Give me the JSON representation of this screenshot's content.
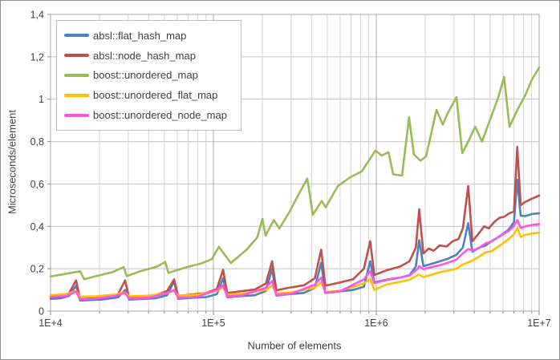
{
  "chart_data": {
    "type": "line",
    "title": "",
    "xlabel": "Number of elements",
    "ylabel": "Microseconds/element",
    "x_scale": "log",
    "x_range": [
      10000,
      10000000
    ],
    "y_range": [
      0,
      1.4
    ],
    "grid": true,
    "legend_position": "top-left",
    "x_axis_ticks": [
      {
        "v": 10000,
        "label": "1E+4"
      },
      {
        "v": 100000,
        "label": "1E+5"
      },
      {
        "v": 1000000,
        "label": "1E+6"
      },
      {
        "v": 10000000,
        "label": "1E+7"
      }
    ],
    "y_axis_ticks": [
      {
        "v": 0,
        "label": "0"
      },
      {
        "v": 0.2,
        "label": "0,2"
      },
      {
        "v": 0.4,
        "label": "0,4"
      },
      {
        "v": 0.6,
        "label": "0,6"
      },
      {
        "v": 0.8,
        "label": "0,8"
      },
      {
        "v": 1,
        "label": "1"
      },
      {
        "v": 1.2,
        "label": "1,2"
      },
      {
        "v": 1.4,
        "label": "1,4"
      }
    ],
    "series": [
      {
        "name": "absl::flat_hash_map",
        "color": "#4F81BD",
        "points": [
          [
            10000,
            0.058
          ],
          [
            11500,
            0.06
          ],
          [
            13000,
            0.072
          ],
          [
            14336,
            0.12
          ],
          [
            15200,
            0.05
          ],
          [
            17000,
            0.052
          ],
          [
            21000,
            0.055
          ],
          [
            26000,
            0.065
          ],
          [
            28672,
            0.1
          ],
          [
            30400,
            0.054
          ],
          [
            36000,
            0.057
          ],
          [
            44000,
            0.06
          ],
          [
            52000,
            0.075
          ],
          [
            57344,
            0.14
          ],
          [
            60800,
            0.058
          ],
          [
            72000,
            0.062
          ],
          [
            90000,
            0.066
          ],
          [
            105000,
            0.08
          ],
          [
            114688,
            0.155
          ],
          [
            121600,
            0.065
          ],
          [
            145000,
            0.07
          ],
          [
            180000,
            0.075
          ],
          [
            210000,
            0.095
          ],
          [
            229376,
            0.2
          ],
          [
            243200,
            0.073
          ],
          [
            290000,
            0.08
          ],
          [
            360000,
            0.086
          ],
          [
            420000,
            0.11
          ],
          [
            458752,
            0.228
          ],
          [
            486400,
            0.085
          ],
          [
            580000,
            0.092
          ],
          [
            720000,
            0.1
          ],
          [
            840000,
            0.115
          ],
          [
            917504,
            0.235
          ],
          [
            972800,
            0.135
          ],
          [
            1150000,
            0.148
          ],
          [
            1400000,
            0.158
          ],
          [
            1600000,
            0.17
          ],
          [
            1750000,
            0.21
          ],
          [
            1835008,
            0.335
          ],
          [
            1945000,
            0.212
          ],
          [
            2300000,
            0.228
          ],
          [
            2700000,
            0.245
          ],
          [
            3100000,
            0.265
          ],
          [
            3400000,
            0.3
          ],
          [
            3670016,
            0.415
          ],
          [
            3890000,
            0.28
          ],
          [
            4300000,
            0.3
          ],
          [
            4700000,
            0.31
          ],
          [
            5100000,
            0.33
          ],
          [
            5500000,
            0.345
          ],
          [
            6000000,
            0.365
          ],
          [
            6500000,
            0.385
          ],
          [
            7000000,
            0.42
          ],
          [
            7340032,
            0.62
          ],
          [
            7700000,
            0.45
          ],
          [
            8200000,
            0.448
          ],
          [
            9000000,
            0.458
          ],
          [
            10000000,
            0.462
          ]
        ]
      },
      {
        "name": "absl::node_hash_map",
        "color": "#C0504D",
        "points": [
          [
            10000,
            0.064
          ],
          [
            11500,
            0.067
          ],
          [
            13000,
            0.085
          ],
          [
            14336,
            0.145
          ],
          [
            15200,
            0.056
          ],
          [
            17000,
            0.059
          ],
          [
            21000,
            0.063
          ],
          [
            26000,
            0.08
          ],
          [
            28672,
            0.145
          ],
          [
            30400,
            0.063
          ],
          [
            36000,
            0.068
          ],
          [
            44000,
            0.074
          ],
          [
            52000,
            0.095
          ],
          [
            57344,
            0.15
          ],
          [
            60800,
            0.072
          ],
          [
            72000,
            0.078
          ],
          [
            90000,
            0.085
          ],
          [
            105000,
            0.105
          ],
          [
            114688,
            0.195
          ],
          [
            121600,
            0.085
          ],
          [
            145000,
            0.093
          ],
          [
            180000,
            0.102
          ],
          [
            210000,
            0.13
          ],
          [
            229376,
            0.235
          ],
          [
            243200,
            0.098
          ],
          [
            290000,
            0.11
          ],
          [
            360000,
            0.122
          ],
          [
            420000,
            0.155
          ],
          [
            458752,
            0.29
          ],
          [
            486400,
            0.12
          ],
          [
            580000,
            0.133
          ],
          [
            720000,
            0.15
          ],
          [
            840000,
            0.2
          ],
          [
            917504,
            0.33
          ],
          [
            972800,
            0.17
          ],
          [
            1150000,
            0.192
          ],
          [
            1400000,
            0.21
          ],
          [
            1600000,
            0.235
          ],
          [
            1750000,
            0.3
          ],
          [
            1835008,
            0.48
          ],
          [
            1945000,
            0.272
          ],
          [
            2100000,
            0.295
          ],
          [
            2250000,
            0.285
          ],
          [
            2450000,
            0.31
          ],
          [
            2700000,
            0.305
          ],
          [
            2950000,
            0.33
          ],
          [
            3200000,
            0.34
          ],
          [
            3400000,
            0.39
          ],
          [
            3670016,
            0.59
          ],
          [
            3890000,
            0.33
          ],
          [
            4200000,
            0.36
          ],
          [
            4600000,
            0.4
          ],
          [
            4900000,
            0.39
          ],
          [
            5300000,
            0.42
          ],
          [
            5700000,
            0.44
          ],
          [
            6100000,
            0.445
          ],
          [
            6500000,
            0.46
          ],
          [
            7000000,
            0.47
          ],
          [
            7340032,
            0.775
          ],
          [
            7700000,
            0.5
          ],
          [
            8200000,
            0.515
          ],
          [
            9000000,
            0.53
          ],
          [
            10000000,
            0.545
          ]
        ]
      },
      {
        "name": "boost::unordered_map",
        "color": "#9BBB59",
        "points": [
          [
            10000,
            0.163
          ],
          [
            12000,
            0.174
          ],
          [
            15200,
            0.188
          ],
          [
            16100,
            0.15
          ],
          [
            19000,
            0.165
          ],
          [
            24000,
            0.184
          ],
          [
            28100,
            0.208
          ],
          [
            29400,
            0.165
          ],
          [
            35000,
            0.186
          ],
          [
            45000,
            0.21
          ],
          [
            50600,
            0.232
          ],
          [
            53000,
            0.18
          ],
          [
            67000,
            0.205
          ],
          [
            84500,
            0.225
          ],
          [
            97700,
            0.245
          ],
          [
            108000,
            0.303
          ],
          [
            128000,
            0.227
          ],
          [
            160000,
            0.29
          ],
          [
            186000,
            0.348
          ],
          [
            200000,
            0.435
          ],
          [
            209000,
            0.356
          ],
          [
            235000,
            0.43
          ],
          [
            254000,
            0.39
          ],
          [
            294000,
            0.47
          ],
          [
            330000,
            0.545
          ],
          [
            377000,
            0.625
          ],
          [
            408000,
            0.455
          ],
          [
            462000,
            0.52
          ],
          [
            489000,
            0.49
          ],
          [
            581000,
            0.59
          ],
          [
            687000,
            0.63
          ],
          [
            815000,
            0.66
          ],
          [
            989000,
            0.757
          ],
          [
            1080000,
            0.734
          ],
          [
            1190000,
            0.75
          ],
          [
            1270000,
            0.645
          ],
          [
            1440000,
            0.64
          ],
          [
            1590000,
            0.915
          ],
          [
            1700000,
            0.74
          ],
          [
            1870000,
            0.71
          ],
          [
            2020000,
            0.73
          ],
          [
            2200000,
            0.855
          ],
          [
            2340000,
            0.95
          ],
          [
            2560000,
            0.88
          ],
          [
            2750000,
            0.935
          ],
          [
            3110000,
            1.01
          ],
          [
            3370000,
            0.745
          ],
          [
            3670000,
            0.8
          ],
          [
            4050000,
            0.87
          ],
          [
            4460000,
            0.8
          ],
          [
            4980000,
            0.9
          ],
          [
            5570000,
            1.0
          ],
          [
            6090000,
            1.105
          ],
          [
            6570000,
            0.87
          ],
          [
            7350000,
            0.95
          ],
          [
            8240000,
            1.02
          ],
          [
            9000000,
            1.09
          ],
          [
            10000000,
            1.15
          ]
        ]
      },
      {
        "name": "boost::unordered_flat_map",
        "color": "#FFC000",
        "points": [
          [
            10000,
            0.075
          ],
          [
            12500,
            0.08
          ],
          [
            14336,
            0.095
          ],
          [
            15200,
            0.068
          ],
          [
            19000,
            0.07
          ],
          [
            25000,
            0.078
          ],
          [
            28672,
            0.088
          ],
          [
            30400,
            0.07
          ],
          [
            40000,
            0.073
          ],
          [
            52000,
            0.085
          ],
          [
            57344,
            0.096
          ],
          [
            60800,
            0.073
          ],
          [
            80000,
            0.077
          ],
          [
            105000,
            0.095
          ],
          [
            114688,
            0.113
          ],
          [
            121600,
            0.078
          ],
          [
            150000,
            0.082
          ],
          [
            210000,
            0.1
          ],
          [
            229376,
            0.12
          ],
          [
            243200,
            0.083
          ],
          [
            300000,
            0.088
          ],
          [
            420000,
            0.11
          ],
          [
            458752,
            0.135
          ],
          [
            486400,
            0.09
          ],
          [
            600000,
            0.096
          ],
          [
            840000,
            0.13
          ],
          [
            917504,
            0.152
          ],
          [
            972800,
            0.1
          ],
          [
            1150000,
            0.125
          ],
          [
            1400000,
            0.138
          ],
          [
            1600000,
            0.148
          ],
          [
            1800000,
            0.17
          ],
          [
            1835008,
            0.172
          ],
          [
            1945000,
            0.16
          ],
          [
            2200000,
            0.172
          ],
          [
            2500000,
            0.185
          ],
          [
            2800000,
            0.192
          ],
          [
            3100000,
            0.2
          ],
          [
            3400000,
            0.22
          ],
          [
            3670016,
            0.23
          ],
          [
            3890000,
            0.238
          ],
          [
            4300000,
            0.258
          ],
          [
            4700000,
            0.278
          ],
          [
            5100000,
            0.282
          ],
          [
            5500000,
            0.3
          ],
          [
            6000000,
            0.32
          ],
          [
            6500000,
            0.34
          ],
          [
            7000000,
            0.362
          ],
          [
            7340032,
            0.392
          ],
          [
            7700000,
            0.35
          ],
          [
            8200000,
            0.36
          ],
          [
            9000000,
            0.366
          ],
          [
            10000000,
            0.37
          ]
        ]
      },
      {
        "name": "boost::unordered_node_map",
        "color": "#FF54E5",
        "points": [
          [
            10000,
            0.066
          ],
          [
            12500,
            0.072
          ],
          [
            14336,
            0.092
          ],
          [
            15200,
            0.055
          ],
          [
            19000,
            0.059
          ],
          [
            25000,
            0.072
          ],
          [
            28672,
            0.086
          ],
          [
            30400,
            0.059
          ],
          [
            40000,
            0.063
          ],
          [
            52000,
            0.085
          ],
          [
            57344,
            0.1
          ],
          [
            60800,
            0.063
          ],
          [
            80000,
            0.068
          ],
          [
            105000,
            0.1
          ],
          [
            114688,
            0.122
          ],
          [
            121600,
            0.069
          ],
          [
            150000,
            0.074
          ],
          [
            210000,
            0.11
          ],
          [
            229376,
            0.142
          ],
          [
            243200,
            0.076
          ],
          [
            300000,
            0.082
          ],
          [
            420000,
            0.125
          ],
          [
            458752,
            0.158
          ],
          [
            486400,
            0.086
          ],
          [
            600000,
            0.094
          ],
          [
            840000,
            0.15
          ],
          [
            917504,
            0.188
          ],
          [
            972800,
            0.132
          ],
          [
            1150000,
            0.146
          ],
          [
            1400000,
            0.158
          ],
          [
            1600000,
            0.168
          ],
          [
            1800000,
            0.2
          ],
          [
            1835008,
            0.212
          ],
          [
            1945000,
            0.198
          ],
          [
            2200000,
            0.208
          ],
          [
            2500000,
            0.218
          ],
          [
            2800000,
            0.23
          ],
          [
            3100000,
            0.242
          ],
          [
            3400000,
            0.272
          ],
          [
            3670016,
            0.293
          ],
          [
            3890000,
            0.285
          ],
          [
            4300000,
            0.3
          ],
          [
            4700000,
            0.32
          ],
          [
            5100000,
            0.328
          ],
          [
            5500000,
            0.345
          ],
          [
            6000000,
            0.362
          ],
          [
            6500000,
            0.378
          ],
          [
            7000000,
            0.402
          ],
          [
            7340032,
            0.43
          ],
          [
            7700000,
            0.392
          ],
          [
            8200000,
            0.4
          ],
          [
            9000000,
            0.406
          ],
          [
            10000000,
            0.41
          ]
        ]
      }
    ]
  },
  "colors": {
    "plot_border": "#a8a8a8",
    "grid_minor": "#d2d2d2",
    "grid_major": "#a8a8a8",
    "grid_horizontal": "#c4c4c4",
    "tick": "#8c8c8c",
    "text": "#404040"
  }
}
